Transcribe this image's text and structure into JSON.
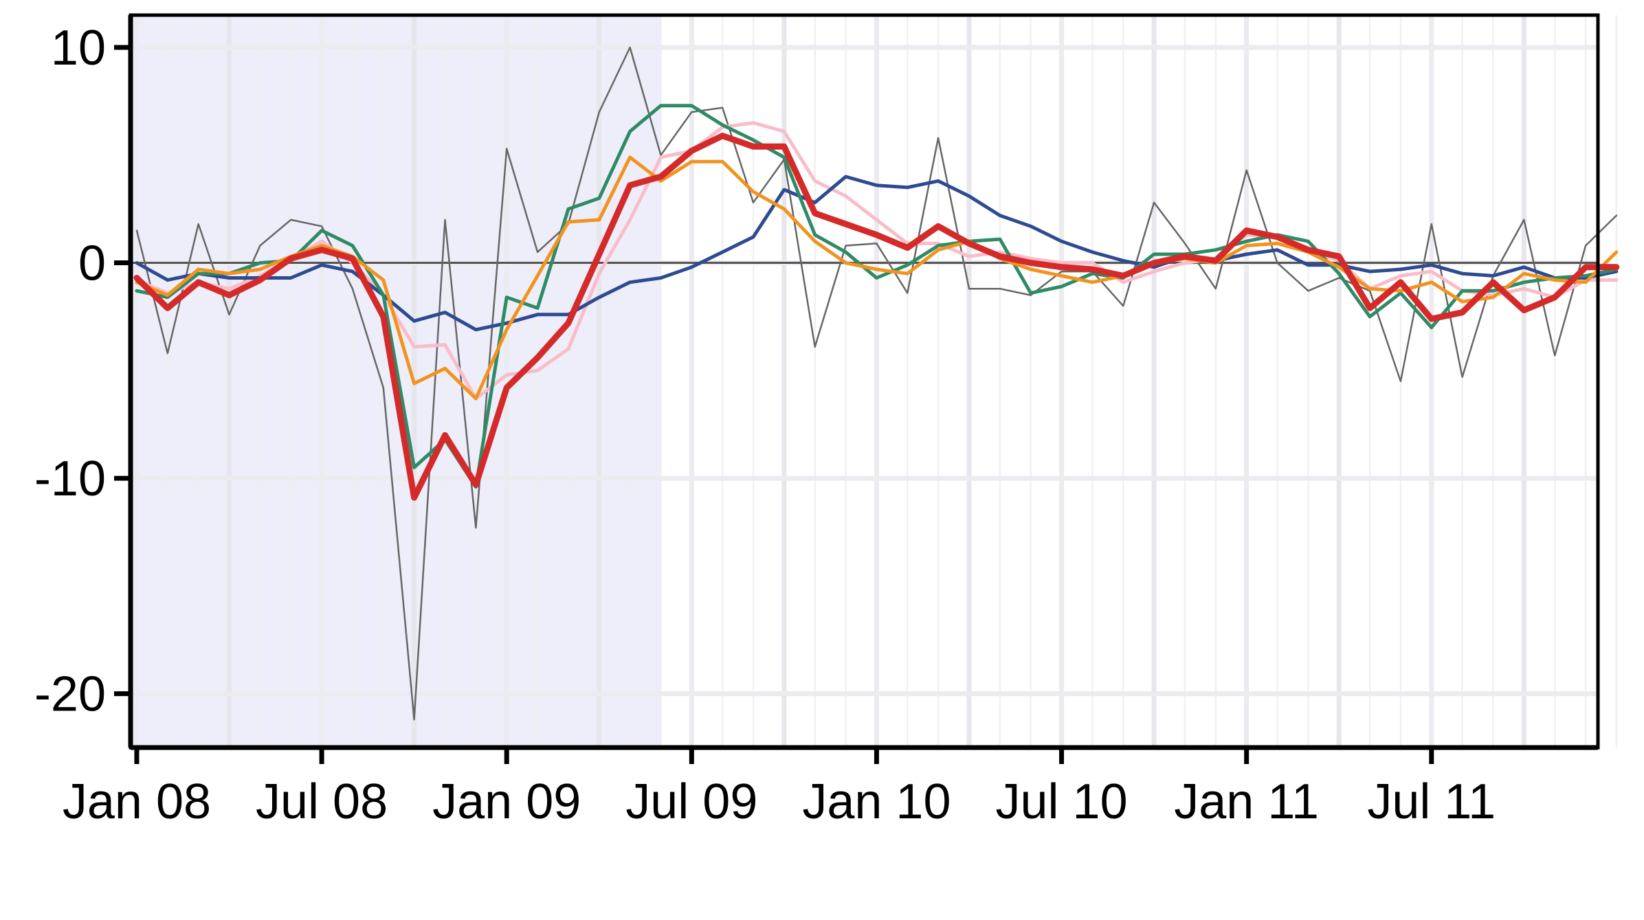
{
  "chart_data": {
    "type": "line",
    "title": "",
    "xlabel": "",
    "ylabel": "",
    "x_start": "Jan 08",
    "x_end": "Dec 11",
    "x_ticks": [
      {
        "month_index": 0,
        "label": "Jan 08"
      },
      {
        "month_index": 6,
        "label": "Jul 08"
      },
      {
        "month_index": 12,
        "label": "Jan 09"
      },
      {
        "month_index": 18,
        "label": "Jul 09"
      },
      {
        "month_index": 24,
        "label": "Jan 10"
      },
      {
        "month_index": 30,
        "label": "Jul 10"
      },
      {
        "month_index": 36,
        "label": "Jan 11"
      },
      {
        "month_index": 42,
        "label": "Jul 11"
      }
    ],
    "y_ticks": [
      10,
      0,
      -10,
      -20
    ],
    "ylim": [
      -22.5,
      11.5
    ],
    "xlim_months": [
      -0.2,
      47.4
    ],
    "grid": true,
    "legend": "none",
    "zero_line": true,
    "recession_shading": {
      "from": "Jan 08",
      "to": "Jun 09",
      "color": "#eeeefb"
    },
    "colors": {
      "axis": "#000000",
      "grid": "#efefef",
      "zero_line": "#555555",
      "recession": "#eeeefb"
    },
    "series": [
      {
        "key": "gray",
        "color": "#666666",
        "width": 2.5,
        "values": [
          1.5,
          -4.2,
          1.8,
          -2.4,
          0.8,
          2.0,
          1.7,
          -1.2,
          -5.8,
          -21.2,
          2.0,
          -12.3,
          5.3,
          0.5,
          1.8,
          7.0,
          10.0,
          5.0,
          7.0,
          7.2,
          2.8,
          4.8,
          -3.9,
          0.8,
          0.9,
          -1.4,
          5.8,
          -1.2,
          -1.2,
          -1.5,
          -0.4,
          -0.4,
          -2.0,
          2.8,
          0.9,
          -1.2,
          4.3,
          0.0,
          -1.3,
          -0.7,
          -1.3,
          -5.5,
          1.8,
          -5.3,
          -0.6,
          2.0,
          -4.3,
          0.8,
          2.2
        ]
      },
      {
        "key": "pink",
        "color": "#f9bcc9",
        "width": 5,
        "values": [
          -0.8,
          -1.4,
          -0.9,
          -1.2,
          -0.6,
          0.2,
          1.0,
          0.0,
          -1.5,
          -3.9,
          -3.8,
          -6.3,
          -5.2,
          -5.0,
          -4.0,
          -0.5,
          2.0,
          4.9,
          5.2,
          6.3,
          6.5,
          6.1,
          3.8,
          3.1,
          2.0,
          0.9,
          0.9,
          0.3,
          0.5,
          0.2,
          0.0,
          0.0,
          -0.9,
          -0.4,
          0.0,
          0.2,
          1.3,
          1.2,
          0.6,
          0.1,
          -1.2,
          -0.6,
          -0.4,
          -1.3,
          -1.5,
          -1.2,
          -1.6,
          -0.8,
          -0.8
        ]
      },
      {
        "key": "navy",
        "color": "#2e4a91",
        "width": 5,
        "values": [
          0.0,
          -0.8,
          -0.5,
          -0.7,
          -0.7,
          -0.7,
          -0.1,
          -0.4,
          -1.5,
          -2.7,
          -2.3,
          -3.1,
          -2.8,
          -2.4,
          -2.4,
          -1.6,
          -0.9,
          -0.7,
          -0.2,
          0.5,
          1.2,
          3.4,
          2.8,
          4.0,
          3.6,
          3.5,
          3.8,
          3.1,
          2.2,
          1.7,
          1.0,
          0.5,
          0.1,
          -0.2,
          0.3,
          0.1,
          0.4,
          0.6,
          -0.1,
          -0.1,
          -0.4,
          -0.3,
          -0.1,
          -0.5,
          -0.6,
          -0.2,
          -0.7,
          -0.7,
          -0.4
        ]
      },
      {
        "key": "green",
        "color": "#2e8b66",
        "width": 5,
        "values": [
          -1.3,
          -1.6,
          -0.5,
          -0.5,
          0.0,
          0.1,
          1.5,
          0.8,
          -1.5,
          -9.5,
          -8.2,
          -10.4,
          -1.6,
          -2.1,
          2.5,
          3.0,
          6.1,
          7.3,
          7.3,
          6.4,
          5.7,
          4.9,
          1.3,
          0.5,
          -0.7,
          -0.1,
          0.8,
          1.0,
          1.1,
          -1.4,
          -1.1,
          -0.5,
          -0.7,
          0.4,
          0.4,
          0.6,
          1.0,
          1.3,
          1.0,
          -0.5,
          -2.5,
          -1.4,
          -3.0,
          -1.3,
          -1.3,
          -0.9,
          -0.7,
          -0.6,
          -0.3
        ]
      },
      {
        "key": "orange",
        "color": "#f29320",
        "width": 5,
        "values": [
          -0.9,
          -1.5,
          -0.3,
          -0.5,
          -0.3,
          0.3,
          0.8,
          0.3,
          -0.8,
          -5.6,
          -4.9,
          -6.3,
          -3.1,
          -0.6,
          1.9,
          2.0,
          4.9,
          3.8,
          4.7,
          4.7,
          3.3,
          2.5,
          1.0,
          0.0,
          -0.3,
          -0.5,
          0.6,
          1.0,
          0.2,
          -0.3,
          -0.6,
          -0.9,
          -0.6,
          0.0,
          0.2,
          0.0,
          0.8,
          0.9,
          0.5,
          -0.2,
          -1.2,
          -1.3,
          -0.9,
          -1.8,
          -1.6,
          -0.5,
          -0.8,
          -0.9,
          0.5
        ]
      },
      {
        "key": "red",
        "color": "#d42a2a",
        "width": 9,
        "values": [
          -0.7,
          -2.1,
          -0.9,
          -1.5,
          -0.8,
          0.2,
          0.6,
          0.2,
          -2.5,
          -10.9,
          -8.0,
          -10.3,
          -5.8,
          -4.4,
          -2.8,
          0.4,
          3.6,
          4.0,
          5.2,
          5.9,
          5.4,
          5.4,
          2.3,
          1.8,
          1.3,
          0.7,
          1.7,
          0.9,
          0.3,
          0.0,
          -0.2,
          -0.3,
          -0.6,
          0.0,
          0.3,
          0.1,
          1.5,
          1.2,
          0.6,
          0.3,
          -2.1,
          -0.9,
          -2.6,
          -2.3,
          -0.9,
          -2.2,
          -1.6,
          -0.2,
          -0.2
        ]
      }
    ]
  }
}
